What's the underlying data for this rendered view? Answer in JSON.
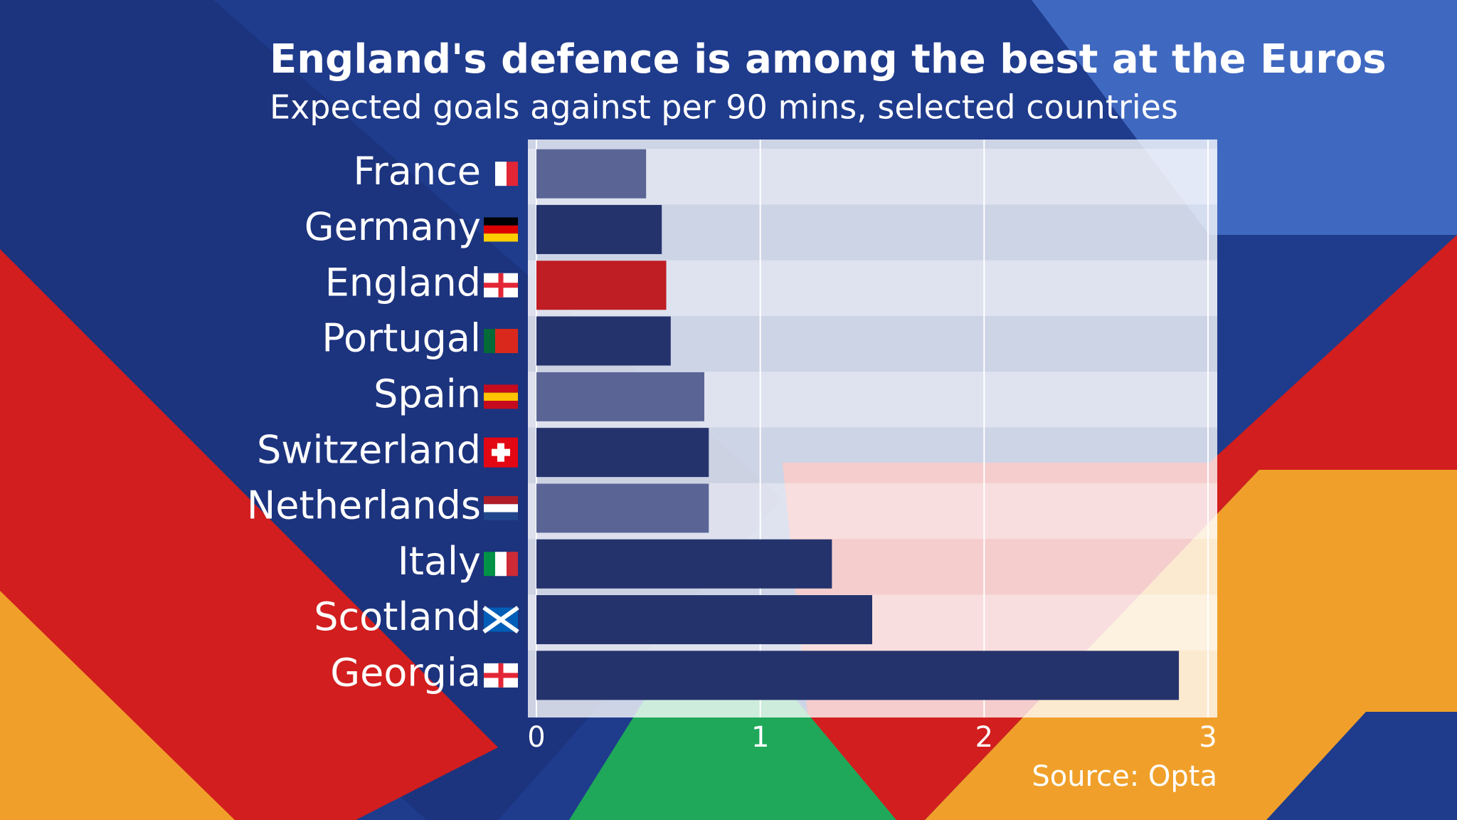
{
  "chart_data": {
    "type": "bar",
    "orientation": "horizontal",
    "title": "England's defence is among the best at the Euros",
    "subtitle": "Expected goals against per 90 mins, selected countries",
    "categories": [
      "France",
      "Germany",
      "England",
      "Portugal",
      "Spain",
      "Switzerland",
      "Netherlands",
      "Italy",
      "Scotland",
      "Georgia"
    ],
    "values": [
      0.49,
      0.56,
      0.58,
      0.6,
      0.75,
      0.77,
      0.77,
      1.32,
      1.5,
      2.87
    ],
    "colors": [
      "#5a6596",
      "#25336d",
      "#be1e24",
      "#25336d",
      "#5a6596",
      "#25336d",
      "#5a6596",
      "#25336d",
      "#25336d",
      "#25336d"
    ],
    "xlim": [
      0,
      3
    ],
    "xticks": [
      0,
      1,
      2,
      3
    ],
    "grid": true,
    "source": "Source: Opta"
  }
}
